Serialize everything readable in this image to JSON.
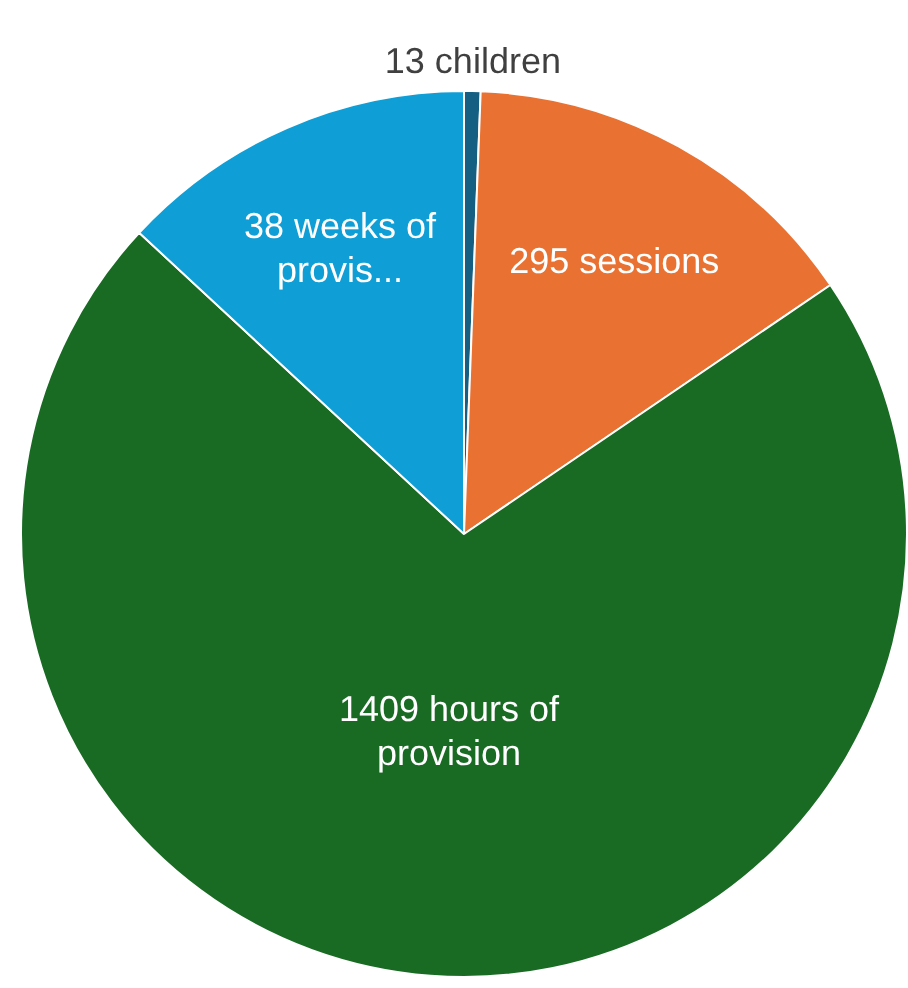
{
  "chart_data": {
    "type": "pie",
    "categories": [
      "13 children",
      "295 sessions",
      "1409 hours of provision",
      "38 weeks of provis..."
    ],
    "values": [
      0.6,
      14.9,
      71.4,
      13.1
    ],
    "colors": [
      "#156082",
      "#e97132",
      "#196b24",
      "#0f9ed5"
    ],
    "legend": false
  }
}
